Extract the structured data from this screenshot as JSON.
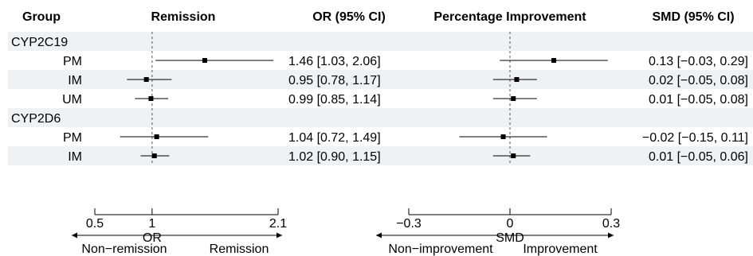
{
  "chart_data": {
    "type": "forest",
    "headers": {
      "group": "Group",
      "remission": "Remission",
      "or_ci": "OR (95% CI)",
      "improvement": "Percentage Improvement",
      "smd_ci": "SMD (95% CI)"
    },
    "rows": [
      {
        "kind": "section",
        "label": "CYP2C19",
        "shaded": true
      },
      {
        "kind": "data",
        "label": "PM",
        "shaded": false,
        "or": 1.46,
        "or_lo": 1.03,
        "or_hi": 2.06,
        "or_text": "1.46 [1.03, 2.06]",
        "smd": 0.13,
        "smd_lo": -0.03,
        "smd_hi": 0.29,
        "smd_text": "0.13 [−0.03, 0.29]"
      },
      {
        "kind": "data",
        "label": "IM",
        "shaded": true,
        "or": 0.95,
        "or_lo": 0.78,
        "or_hi": 1.17,
        "or_text": "0.95 [0.78, 1.17]",
        "smd": 0.02,
        "smd_lo": -0.05,
        "smd_hi": 0.08,
        "smd_text": "0.02 [−0.05, 0.08]"
      },
      {
        "kind": "data",
        "label": "UM",
        "shaded": false,
        "or": 0.99,
        "or_lo": 0.85,
        "or_hi": 1.14,
        "or_text": "0.99 [0.85, 1.14]",
        "smd": 0.01,
        "smd_lo": -0.05,
        "smd_hi": 0.08,
        "smd_text": "0.01 [−0.05, 0.08]"
      },
      {
        "kind": "section",
        "label": "CYP2D6",
        "shaded": true
      },
      {
        "kind": "data",
        "label": "PM",
        "shaded": false,
        "or": 1.04,
        "or_lo": 0.72,
        "or_hi": 1.49,
        "or_text": "1.04 [0.72, 1.49]",
        "smd": -0.02,
        "smd_lo": -0.15,
        "smd_hi": 0.11,
        "smd_text": "−0.02 [−0.15, 0.11]"
      },
      {
        "kind": "data",
        "label": "IM",
        "shaded": true,
        "or": 1.02,
        "or_lo": 0.9,
        "or_hi": 1.15,
        "or_text": "1.02 [0.90, 1.15]",
        "smd": 0.01,
        "smd_lo": -0.05,
        "smd_hi": 0.06,
        "smd_text": "0.01 [−0.05, 0.06]"
      }
    ],
    "or_axis": {
      "label": "OR",
      "ref": 1,
      "ticks": [
        {
          "v": 0.5,
          "t": "0.5"
        },
        {
          "v": 1,
          "t": "1"
        },
        {
          "v": 2.1,
          "t": "2.1"
        }
      ],
      "left_arrow": "Non−remission",
      "right_arrow": "Remission"
    },
    "smd_axis": {
      "label": "SMD",
      "ref": 0,
      "ticks": [
        {
          "v": -0.3,
          "t": "−0.3"
        },
        {
          "v": 0,
          "t": "0"
        },
        {
          "v": 0.3,
          "t": "0.3"
        }
      ],
      "left_arrow": "Non−improvement",
      "right_arrow": "Improvement"
    },
    "colors": {
      "shade": "#eef2f2",
      "ink": "#000000",
      "ref_line": "#555555"
    }
  }
}
